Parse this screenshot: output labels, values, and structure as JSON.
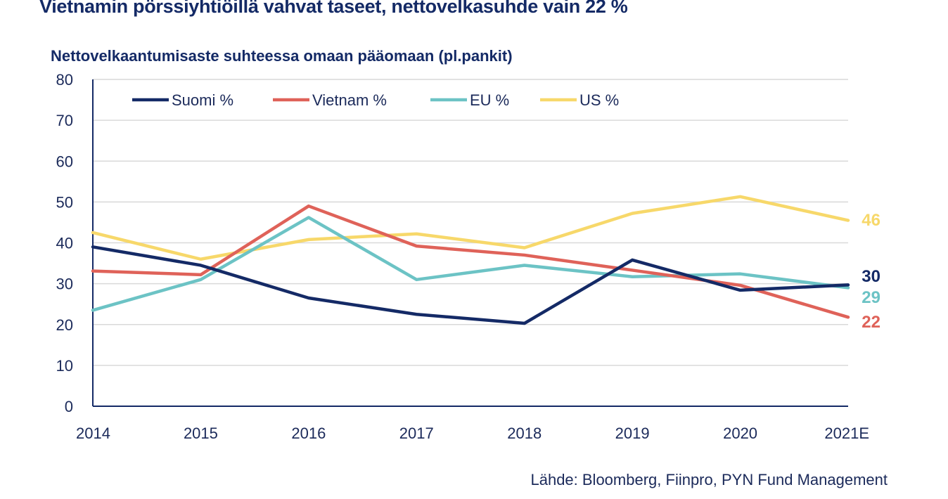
{
  "page_title": "Vietnamin pörssiyhtiöillä vahvat taseet, nettovelkasuhde vain 22 %",
  "source_note": "Lähde: Bloomberg, Fiinpro, PYN Fund Management",
  "chart_data": {
    "type": "line",
    "title": "Nettovelkaantumisaste suhteessa omaan pääomaan (pl.pankit)",
    "xlabel": "",
    "ylabel": "",
    "categories": [
      "2014",
      "2015",
      "2016",
      "2017",
      "2018",
      "2019",
      "2020",
      "2021E"
    ],
    "ylim": [
      0,
      80
    ],
    "yticks": [
      "0",
      "10",
      "20",
      "30",
      "40",
      "50",
      "60",
      "70",
      "80"
    ],
    "grid": true,
    "legend_position": "top",
    "series": [
      {
        "name": "Suomi %",
        "color": "#142a66",
        "values": [
          39,
          34.5,
          26.5,
          22.5,
          20.3,
          35.8,
          28.4,
          29.7
        ],
        "end_label": "30"
      },
      {
        "name": "Vietnam %",
        "color": "#df6259",
        "values": [
          33.1,
          32.2,
          49,
          39.2,
          37,
          33.3,
          29.6,
          21.8
        ],
        "end_label": "22"
      },
      {
        "name": "EU %",
        "color": "#6cc3c5",
        "values": [
          23.5,
          31,
          46.2,
          31,
          34.5,
          31.7,
          32.4,
          29
        ],
        "end_label": "29"
      },
      {
        "name": "US %",
        "color": "#f7d86a",
        "values": [
          42.5,
          36,
          40.8,
          42.2,
          38.8,
          47.2,
          51.3,
          45.5
        ],
        "end_label": "46"
      }
    ]
  }
}
